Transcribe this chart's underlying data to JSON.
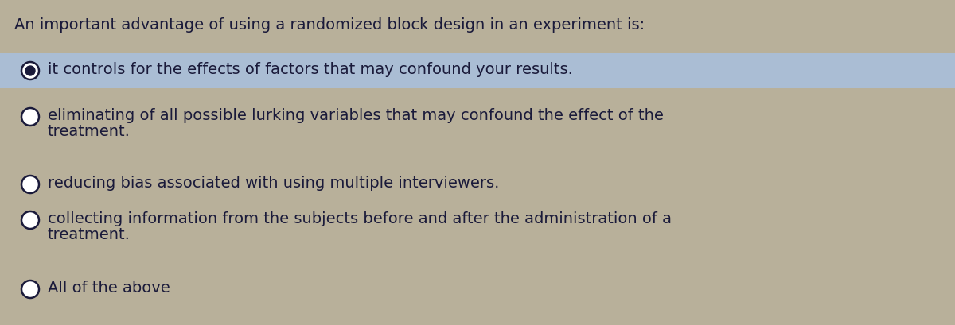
{
  "background_color": "#b8b09a",
  "highlight_color": "#aabdd4",
  "question": "An important advantage of using a randomized block design in an experiment is:",
  "options": [
    {
      "text": "it controls for the effects of factors that may confound your results.",
      "selected": true,
      "multiline": false
    },
    {
      "text_line1": "eliminating of all possible lurking variables that may confound the effect of the",
      "text_line2": "treatment.",
      "selected": false,
      "multiline": true
    },
    {
      "text": "reducing bias associated with using multiple interviewers.",
      "selected": false,
      "multiline": false
    },
    {
      "text_line1": "collecting information from the subjects before and after the administration of a",
      "text_line2": "treatment.",
      "selected": false,
      "multiline": true
    },
    {
      "text": "All of the above",
      "selected": false,
      "multiline": false
    }
  ],
  "question_fontsize": 14,
  "option_fontsize": 14,
  "text_color": "#1a1a3a",
  "circle_color": "#1a1a3a",
  "selected_fill": "#1a1a3a",
  "fig_width": 12.0,
  "fig_height": 4.1,
  "dpi": 100
}
